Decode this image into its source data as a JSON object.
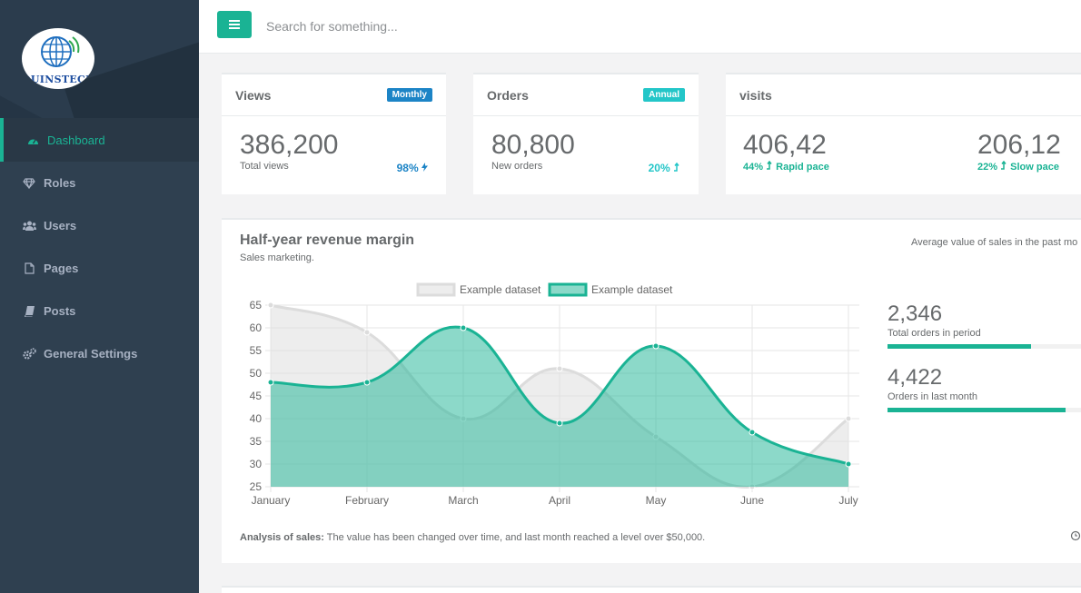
{
  "brand": {
    "logo_text": "QUINSTECH"
  },
  "colors": {
    "accent": "#1ab394",
    "sidebar_bg": "#2f4050",
    "blue": "#1c84c6",
    "cyan": "#23c6c8"
  },
  "sidebar": {
    "items": [
      {
        "label": "Dashboard",
        "icon": "dashboard-icon",
        "active": true
      },
      {
        "label": "Roles",
        "icon": "diamond-icon"
      },
      {
        "label": "Users",
        "icon": "users-icon"
      },
      {
        "label": "Pages",
        "icon": "file-icon"
      },
      {
        "label": "Posts",
        "icon": "book-icon"
      },
      {
        "label": "General Settings",
        "icon": "gears-icon"
      }
    ]
  },
  "topbar": {
    "search_placeholder": "Search for something..."
  },
  "cards": [
    {
      "title": "Views",
      "badge": "Monthly",
      "value": "386,200",
      "caption": "Total views",
      "percent": "98%",
      "percent_icon": "bolt-icon"
    },
    {
      "title": "Orders",
      "badge": "Annual",
      "value": "80,800",
      "caption": "New orders",
      "percent": "20%",
      "percent_icon": "level-up-icon"
    },
    {
      "title": "visits",
      "value_a": "406,42",
      "percent_a": "44%",
      "caption_a": "Rapid pace",
      "value_b": "206,12",
      "percent_b": "22%",
      "caption_b": "Slow pace"
    }
  ],
  "revenue": {
    "title": "Half-year revenue margin",
    "subtitle": "Sales marketing.",
    "right_caption": "Average value of sales in the past mo",
    "metrics": [
      {
        "value": "2,346",
        "label": "Total orders in period",
        "progress": 0.74
      },
      {
        "value": "4,422",
        "label": "Orders in last month",
        "progress": 0.92
      }
    ],
    "analysis_label": "Analysis of sales:",
    "analysis_text": " The value has been changed over time, and last month reached a level over $50,000."
  },
  "chart_data": {
    "type": "area",
    "categories": [
      "January",
      "February",
      "March",
      "April",
      "May",
      "June",
      "July"
    ],
    "ylim": [
      25,
      65
    ],
    "yticks": [
      25,
      30,
      35,
      40,
      45,
      50,
      55,
      60,
      65
    ],
    "grid": true,
    "legend_position": "top",
    "series": [
      {
        "name": "Example dataset",
        "values": [
          65,
          59,
          40,
          51,
          36,
          25,
          40
        ],
        "color": "#dcdcdc"
      },
      {
        "name": "Example dataset",
        "values": [
          48,
          48,
          60,
          39,
          56,
          37,
          30
        ],
        "color": "#1ab394"
      }
    ]
  }
}
